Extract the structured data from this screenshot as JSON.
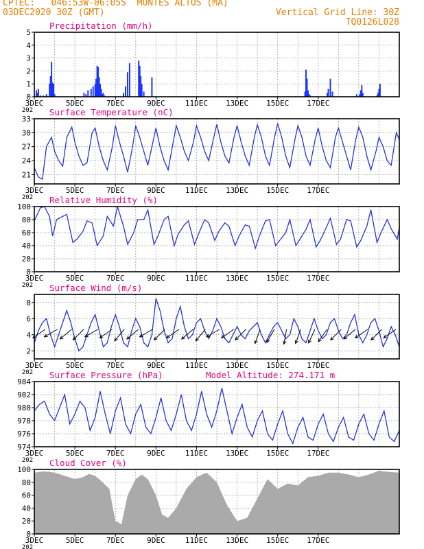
{
  "header": {
    "line1_left": "CPTEC:   046:53W-06:05S  MONTES ALTOS (MA)",
    "line2_left": "03DEC2020 30Z (GMT)",
    "line1_right": "Vertical Grid Line: 30Z",
    "line2_right": "TQ0126L028"
  },
  "colors": {
    "header": "#e67e00",
    "panel_title": "#e6007e",
    "line": "#2233dd",
    "bar": "#1a35ff",
    "cloud": "#aaaaaa",
    "grid": "#999999"
  },
  "x_tick_labels": [
    "3DEC",
    "5DEC",
    "7DEC",
    "9DEC",
    "11DEC",
    "13DEC",
    "15DEC",
    "17DEC"
  ],
  "x_corner_label": "202",
  "chart_data": [
    {
      "id": "precip",
      "type": "bar",
      "title": "Precipitation (mm/h)",
      "ylim": [
        0,
        5
      ],
      "yticks": [
        0,
        1,
        2,
        3,
        4,
        5
      ],
      "x_days": [
        0.1,
        0.15,
        0.2,
        0.3,
        0.45,
        0.6,
        0.75,
        0.8,
        0.85,
        0.9,
        0.95,
        1.0,
        2.45,
        2.55,
        2.65,
        2.8,
        2.9,
        3.0,
        3.05,
        3.1,
        3.15,
        3.2,
        3.25,
        3.3,
        3.35,
        3.4,
        3.45,
        4.4,
        4.5,
        4.6,
        4.7,
        5.15,
        5.2,
        5.25,
        5.3,
        5.4,
        5.8,
        13.35,
        13.4,
        13.45,
        13.5,
        13.55,
        13.6,
        14.45,
        14.5,
        14.6,
        14.7,
        15.9,
        16.05,
        16.1,
        16.15,
        16.2,
        16.9,
        16.95,
        17.0,
        17.05
      ],
      "values": [
        0.5,
        0.3,
        0.6,
        0.1,
        0.1,
        0.2,
        1.0,
        1.6,
        2.7,
        1.1,
        1.0,
        0.2,
        0.3,
        0.2,
        0.5,
        0.6,
        0.8,
        1.0,
        1.4,
        2.4,
        2.3,
        1.5,
        1.0,
        0.6,
        0.2,
        0.3,
        0.1,
        0.3,
        0.8,
        1.9,
        2.6,
        2.8,
        2.4,
        1.6,
        1.0,
        0.4,
        1.5,
        0.4,
        2.1,
        1.4,
        0.5,
        0.2,
        0.1,
        0.3,
        0.6,
        1.4,
        0.4,
        0.2,
        0.2,
        0.5,
        0.9,
        0.3,
        0.1,
        0.3,
        0.6,
        1.0
      ]
    },
    {
      "id": "temp",
      "type": "line",
      "title": "Surface Temperature (nC)",
      "ylim": [
        19,
        33
      ],
      "yticks": [
        21,
        24,
        27,
        30,
        33
      ],
      "x_days": [
        0.0,
        0.2,
        0.4,
        0.6,
        0.85,
        1.0,
        1.2,
        1.4,
        1.6,
        1.85,
        2.0,
        2.2,
        2.4,
        2.6,
        2.85,
        3.0,
        3.2,
        3.4,
        3.6,
        3.85,
        4.0,
        4.2,
        4.4,
        4.6,
        4.85,
        5.0,
        5.2,
        5.4,
        5.6,
        5.85,
        6.0,
        6.2,
        6.4,
        6.6,
        6.85,
        7.0,
        7.2,
        7.4,
        7.6,
        7.85,
        8.0,
        8.2,
        8.4,
        8.6,
        8.85,
        9.0,
        9.2,
        9.4,
        9.6,
        9.85,
        10.0,
        10.2,
        10.4,
        10.6,
        10.85,
        11.0,
        11.2,
        11.4,
        11.6,
        11.85,
        12.0,
        12.2,
        12.4,
        12.6,
        12.85,
        13.0,
        13.2,
        13.4,
        13.6,
        13.85,
        14.0,
        14.2,
        14.4,
        14.6,
        14.85,
        15.0,
        15.2,
        15.4,
        15.6,
        15.85,
        16.0,
        16.2,
        16.4,
        16.6,
        16.85,
        17.0,
        17.2,
        17.4,
        17.6,
        17.85,
        18.0
      ],
      "values": [
        22.5,
        20.5,
        20.0,
        27.0,
        29.0,
        26.0,
        24.0,
        22.8,
        29.0,
        31.2,
        28.0,
        25.0,
        23.0,
        23.5,
        30.0,
        31.0,
        27.0,
        24.0,
        22.0,
        27.0,
        31.5,
        28.0,
        25.0,
        21.5,
        27.0,
        31.5,
        29.0,
        26.0,
        23.0,
        28.0,
        31.0,
        27.0,
        24.0,
        22.0,
        28.0,
        31.5,
        29.0,
        26.0,
        24.0,
        28.0,
        31.5,
        29.0,
        26.0,
        24.0,
        29.0,
        31.8,
        28.0,
        25.0,
        23.5,
        29.0,
        31.5,
        28.0,
        25.0,
        23.0,
        29.0,
        31.7,
        29.0,
        25.0,
        23.0,
        29.0,
        32.0,
        29.0,
        25.0,
        22.5,
        28.5,
        31.5,
        29.0,
        25.0,
        23.0,
        28.5,
        31.0,
        27.0,
        24.0,
        22.5,
        29.0,
        31.0,
        28.0,
        25.0,
        22.0,
        28.5,
        31.2,
        29.0,
        25.0,
        22.0,
        26.0,
        29.0,
        27.0,
        24.0,
        23.0,
        30.0,
        28.5
      ]
    },
    {
      "id": "rh",
      "type": "line",
      "title": "Relative Humidity (%)",
      "ylim": [
        0,
        100
      ],
      "yticks": [
        0,
        20,
        40,
        60,
        80,
        100
      ],
      "x_days": [
        0.0,
        0.3,
        0.5,
        0.75,
        0.9,
        1.1,
        1.4,
        1.6,
        1.9,
        2.1,
        2.4,
        2.6,
        2.85,
        3.1,
        3.4,
        3.6,
        3.9,
        4.1,
        4.4,
        4.6,
        4.9,
        5.1,
        5.4,
        5.6,
        5.9,
        6.1,
        6.4,
        6.6,
        6.9,
        7.1,
        7.4,
        7.6,
        7.9,
        8.1,
        8.4,
        8.6,
        8.9,
        9.1,
        9.4,
        9.6,
        9.9,
        10.1,
        10.4,
        10.6,
        10.9,
        11.1,
        11.4,
        11.6,
        11.9,
        12.1,
        12.4,
        12.6,
        12.9,
        13.1,
        13.4,
        13.6,
        13.9,
        14.1,
        14.4,
        14.6,
        14.9,
        15.1,
        15.4,
        15.6,
        15.9,
        16.1,
        16.4,
        16.6,
        16.9,
        17.1,
        17.4,
        17.6,
        17.9,
        18.0
      ],
      "values": [
        78,
        98,
        100,
        85,
        55,
        80,
        85,
        88,
        45,
        50,
        62,
        78,
        75,
        40,
        55,
        85,
        70,
        100,
        70,
        42,
        60,
        80,
        80,
        95,
        42,
        55,
        80,
        85,
        40,
        58,
        72,
        78,
        42,
        58,
        80,
        75,
        48,
        62,
        75,
        70,
        40,
        55,
        72,
        70,
        36,
        55,
        78,
        80,
        40,
        48,
        60,
        80,
        40,
        50,
        65,
        80,
        38,
        48,
        68,
        82,
        42,
        50,
        80,
        78,
        38,
        48,
        70,
        95,
        45,
        60,
        80,
        66,
        50,
        68
      ]
    },
    {
      "id": "wind",
      "type": "line",
      "title": "Surface Wind (m/s)",
      "ylim": [
        1,
        9
      ],
      "yticks": [
        2,
        4,
        6,
        8
      ],
      "x_days": [
        0.0,
        0.2,
        0.4,
        0.6,
        0.8,
        1.0,
        1.2,
        1.4,
        1.6,
        1.8,
        2.0,
        2.2,
        2.4,
        2.6,
        2.8,
        3.0,
        3.2,
        3.4,
        3.6,
        3.8,
        4.0,
        4.2,
        4.4,
        4.6,
        4.8,
        5.0,
        5.2,
        5.4,
        5.6,
        5.8,
        6.0,
        6.2,
        6.4,
        6.6,
        6.8,
        7.0,
        7.2,
        7.4,
        7.6,
        7.8,
        8.0,
        8.2,
        8.4,
        8.6,
        8.8,
        9.0,
        9.2,
        9.4,
        9.6,
        9.8,
        10.0,
        10.2,
        10.4,
        10.6,
        10.8,
        11.0,
        11.2,
        11.4,
        11.6,
        11.8,
        12.0,
        12.2,
        12.4,
        12.6,
        12.8,
        13.0,
        13.2,
        13.4,
        13.6,
        13.8,
        14.0,
        14.2,
        14.4,
        14.6,
        14.8,
        15.0,
        15.2,
        15.4,
        15.6,
        15.8,
        16.0,
        16.2,
        16.4,
        16.6,
        16.8,
        17.0,
        17.2,
        17.4,
        17.6,
        17.8,
        18.0
      ],
      "values": [
        3.0,
        4.5,
        5.5,
        6.0,
        4.0,
        2.5,
        4.0,
        5.5,
        7.0,
        5.5,
        3.5,
        2.0,
        2.5,
        4.0,
        5.5,
        6.5,
        4.5,
        2.5,
        3.0,
        5.0,
        6.5,
        5.0,
        3.0,
        2.5,
        4.5,
        6.0,
        5.0,
        3.0,
        2.5,
        4.0,
        8.5,
        7.0,
        4.5,
        3.0,
        3.5,
        6.0,
        7.5,
        5.0,
        3.5,
        4.0,
        5.5,
        6.0,
        4.5,
        3.5,
        4.5,
        6.0,
        5.0,
        3.5,
        3.0,
        4.0,
        5.0,
        4.0,
        3.5,
        4.5,
        5.0,
        5.5,
        4.0,
        3.0,
        4.0,
        5.0,
        5.5,
        4.5,
        3.5,
        4.0,
        6.0,
        5.0,
        3.5,
        3.0,
        4.5,
        6.0,
        4.5,
        3.5,
        4.0,
        5.5,
        6.0,
        4.5,
        3.5,
        4.0,
        5.5,
        6.5,
        4.0,
        3.0,
        4.0,
        5.5,
        6.0,
        4.5,
        2.5,
        3.5,
        5.0,
        4.0,
        2.5
      ],
      "vectors_x_days": [
        0.2,
        0.8,
        1.5,
        2.1,
        2.8,
        3.5,
        4.1,
        4.8,
        5.5,
        6.1,
        6.8,
        7.5,
        8.1,
        8.8,
        9.5,
        10.1,
        10.8,
        11.5,
        12.1,
        12.8,
        13.5,
        14.1,
        14.8,
        15.5,
        16.1,
        16.8,
        17.5
      ],
      "vectors_dir_deg": [
        215,
        210,
        220,
        225,
        210,
        215,
        230,
        220,
        210,
        225,
        215,
        220,
        230,
        210,
        215,
        225,
        250,
        240,
        260,
        250,
        245,
        235,
        225,
        220,
        215,
        225,
        215
      ]
    },
    {
      "id": "pressure",
      "type": "line",
      "title": "Surface Pressure (hPa)",
      "subtitle": "Model Altitude: 274.171 m",
      "ylim": [
        974,
        984
      ],
      "yticks": [
        974,
        976,
        978,
        980,
        982,
        984
      ],
      "x_days": [
        0.0,
        0.25,
        0.5,
        0.75,
        1.0,
        1.25,
        1.5,
        1.75,
        2.0,
        2.25,
        2.5,
        2.75,
        3.0,
        3.25,
        3.5,
        3.75,
        4.0,
        4.25,
        4.5,
        4.75,
        5.0,
        5.25,
        5.5,
        5.75,
        6.0,
        6.25,
        6.5,
        6.75,
        7.0,
        7.25,
        7.5,
        7.75,
        8.0,
        8.25,
        8.5,
        8.75,
        9.0,
        9.25,
        9.5,
        9.75,
        10.0,
        10.25,
        10.5,
        10.75,
        11.0,
        11.25,
        11.5,
        11.75,
        12.0,
        12.25,
        12.5,
        12.75,
        13.0,
        13.25,
        13.5,
        13.75,
        14.0,
        14.25,
        14.5,
        14.75,
        15.0,
        15.25,
        15.5,
        15.75,
        16.0,
        16.25,
        16.5,
        16.75,
        17.0,
        17.25,
        17.5,
        17.75,
        18.0
      ],
      "values": [
        979.5,
        980.5,
        981.0,
        979.0,
        978.0,
        980.0,
        982.0,
        977.5,
        979.0,
        981.0,
        980.0,
        976.5,
        978.5,
        982.5,
        979.0,
        976.0,
        979.5,
        981.5,
        977.5,
        976.0,
        979.0,
        980.5,
        977.0,
        976.0,
        978.5,
        981.5,
        978.0,
        976.5,
        979.0,
        982.0,
        978.0,
        976.5,
        979.0,
        982.5,
        979.0,
        977.0,
        979.5,
        983.0,
        979.5,
        976.0,
        978.5,
        980.5,
        977.0,
        975.5,
        978.0,
        979.5,
        976.0,
        975.0,
        977.5,
        979.5,
        976.0,
        974.5,
        977.0,
        978.5,
        975.5,
        975.0,
        977.5,
        979.0,
        976.0,
        974.8,
        977.0,
        978.5,
        975.5,
        975.0,
        977.5,
        979.0,
        976.0,
        975.0,
        977.5,
        979.5,
        975.5,
        974.8,
        976.5
      ]
    },
    {
      "id": "cloud",
      "type": "area",
      "title": "Cloud Cover (%)",
      "ylim": [
        0,
        100
      ],
      "yticks": [
        0,
        20,
        40,
        60,
        80,
        100
      ],
      "x_days": [
        0.0,
        0.5,
        1.0,
        1.5,
        2.0,
        2.4,
        2.7,
        3.0,
        3.3,
        3.7,
        4.0,
        4.3,
        4.6,
        5.0,
        5.3,
        5.6,
        6.0,
        6.3,
        6.6,
        7.0,
        7.5,
        8.0,
        8.5,
        9.0,
        9.5,
        10.0,
        10.5,
        11.0,
        11.5,
        12.0,
        12.5,
        13.0,
        13.5,
        14.0,
        14.5,
        15.0,
        15.5,
        16.0,
        16.5,
        17.0,
        17.5,
        18.0
      ],
      "values": [
        95,
        97,
        95,
        90,
        85,
        88,
        93,
        90,
        82,
        70,
        20,
        15,
        60,
        85,
        92,
        85,
        60,
        30,
        25,
        40,
        70,
        88,
        95,
        80,
        45,
        20,
        25,
        55,
        85,
        70,
        78,
        75,
        88,
        90,
        95,
        95,
        92,
        88,
        92,
        98,
        96,
        95
      ]
    }
  ]
}
